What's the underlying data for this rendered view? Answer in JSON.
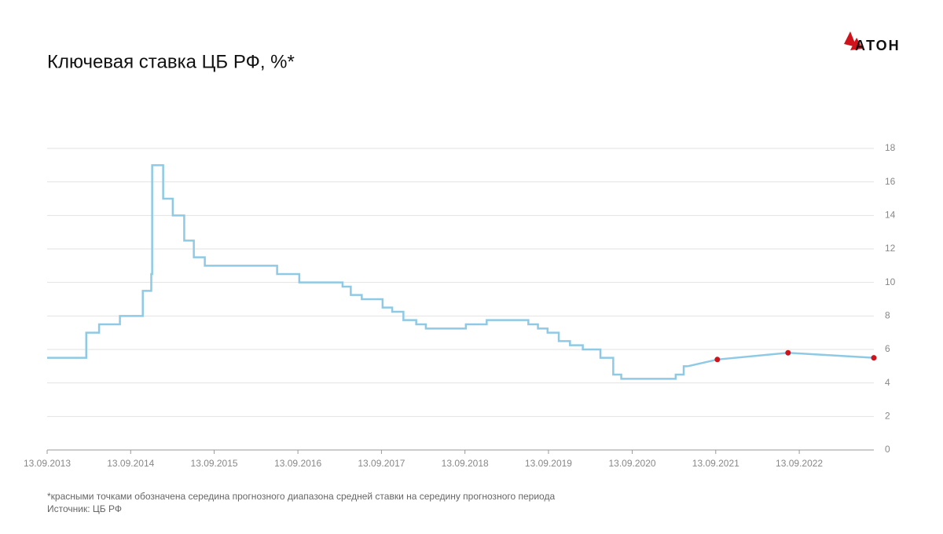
{
  "chart_data": {
    "type": "line",
    "title": "Ключевая ставка ЦБ РФ, %*",
    "logo": "АТОН",
    "footnote": "*красными точками обозначена середина прогнозного диапазона средней ставки на середину прогнозного периода",
    "source": "Источник: ЦБ РФ",
    "xlim": [
      "2013-09-13",
      "2023-08-05"
    ],
    "xticks": [
      {
        "value": "2013-09-13",
        "label": "13.09.2013"
      },
      {
        "value": "2014-09-13",
        "label": "13.09.2014"
      },
      {
        "value": "2015-09-13",
        "label": "13.09.2015"
      },
      {
        "value": "2016-09-13",
        "label": "13.09.2016"
      },
      {
        "value": "2017-09-13",
        "label": "13.09.2017"
      },
      {
        "value": "2018-09-13",
        "label": "13.09.2018"
      },
      {
        "value": "2019-09-13",
        "label": "13.09.2019"
      },
      {
        "value": "2020-09-13",
        "label": "13.09.2020"
      },
      {
        "value": "2021-09-13",
        "label": "13.09.2021"
      },
      {
        "value": "2022-09-13",
        "label": "13.09.2022"
      }
    ],
    "ylim": [
      0,
      18
    ],
    "yticks": [
      0,
      2,
      4,
      6,
      8,
      10,
      12,
      14,
      16,
      18
    ],
    "grid": true,
    "series": [
      {
        "color": "#8ecae6",
        "step": true,
        "x": [
          "2013-09-13",
          "2014-03-03",
          "2014-04-28",
          "2014-07-28",
          "2014-11-05",
          "2014-12-12",
          "2014-12-16",
          "2015-02-02",
          "2015-03-16",
          "2015-05-05",
          "2015-06-16",
          "2015-08-03",
          "2016-06-14",
          "2016-09-19",
          "2017-03-27",
          "2017-05-02",
          "2017-06-19",
          "2017-09-18",
          "2017-10-30",
          "2017-12-18",
          "2018-02-12",
          "2018-03-26",
          "2018-09-17",
          "2018-12-17",
          "2019-06-17",
          "2019-07-29",
          "2019-09-09",
          "2019-10-28",
          "2019-12-16",
          "2020-02-10",
          "2020-04-27",
          "2020-06-22",
          "2020-07-27",
          "2021-03-22",
          "2021-04-26",
          "2021-05-15"
        ],
        "values": [
          5.5,
          7.0,
          7.5,
          8.0,
          9.5,
          10.5,
          17.0,
          15.0,
          14.0,
          12.5,
          11.5,
          11.0,
          10.5,
          10.0,
          9.75,
          9.25,
          9.0,
          8.5,
          8.25,
          7.75,
          7.5,
          7.25,
          7.5,
          7.75,
          7.5,
          7.25,
          7.0,
          6.5,
          6.25,
          6.0,
          5.5,
          4.5,
          4.25,
          4.5,
          5.0,
          5.0
        ]
      },
      {
        "color": "#8ecae6",
        "marker_color": "#d0121b",
        "x": [
          "2021-09-20",
          "2022-07-26",
          "2023-08-05"
        ],
        "values": [
          5.4,
          5.8,
          5.5
        ]
      }
    ]
  }
}
